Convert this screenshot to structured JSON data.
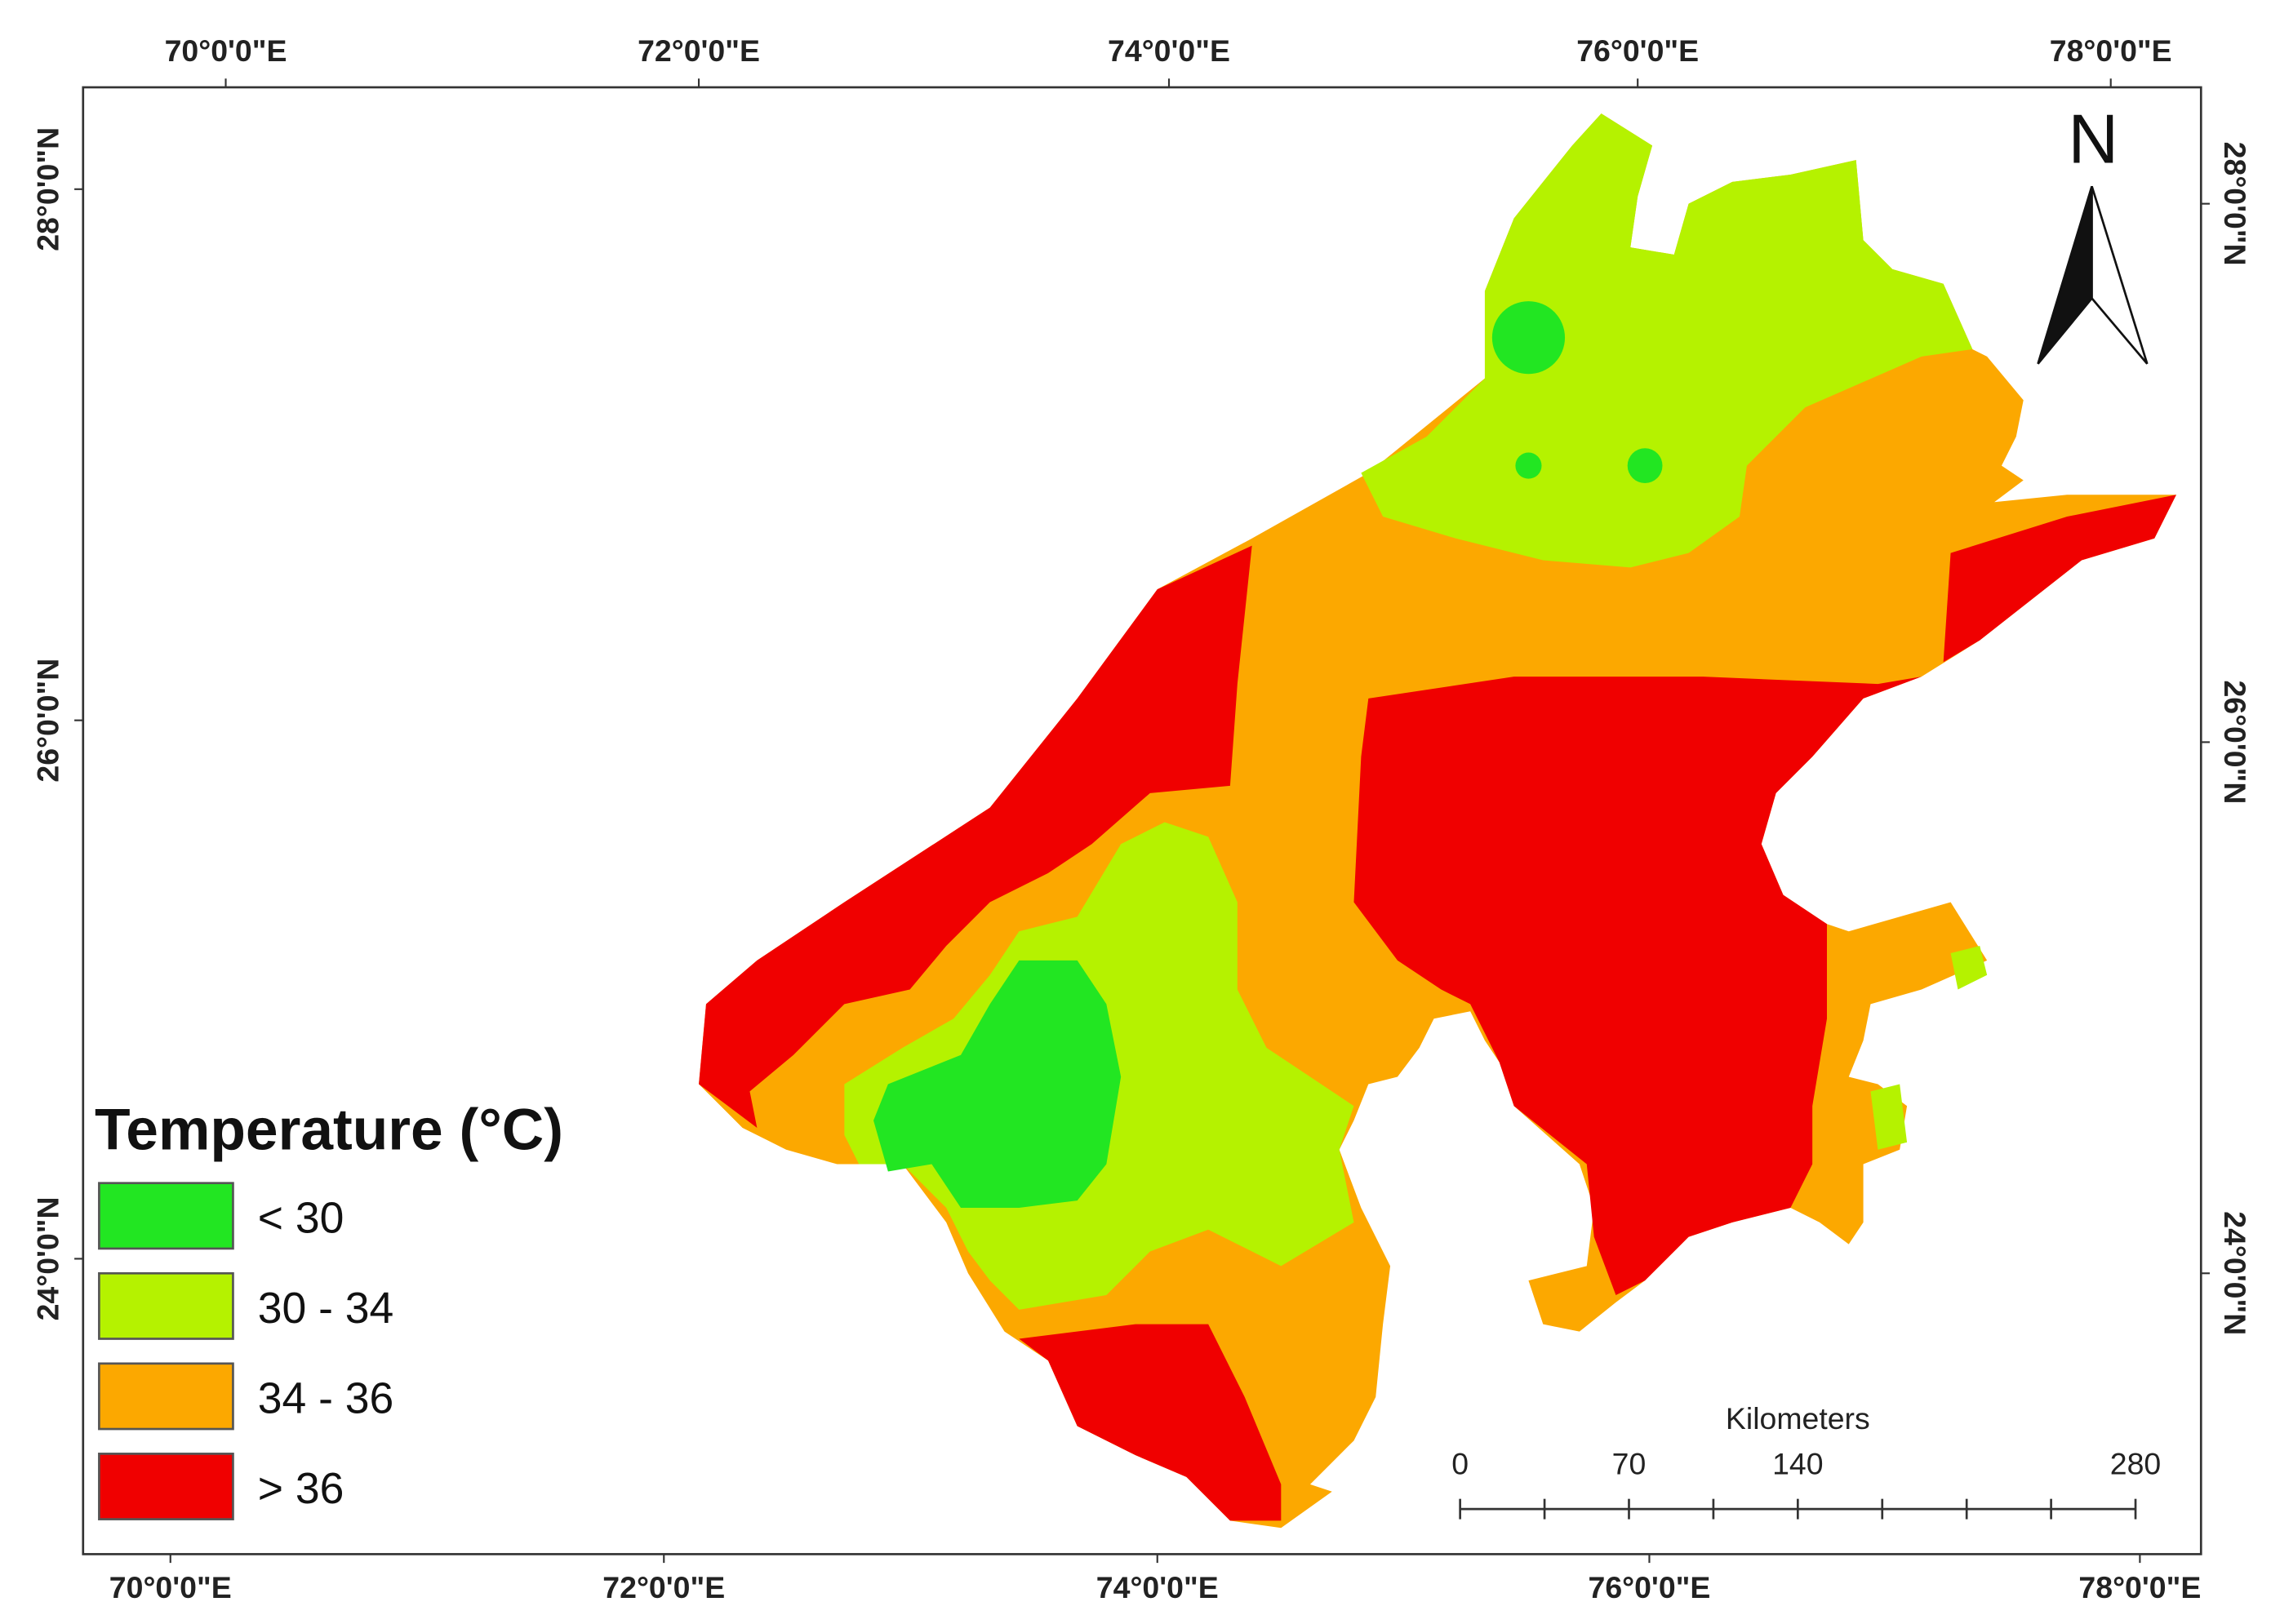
{
  "map": {
    "longitude_labels_top": [
      "70°0'0\"E",
      "72°0'0\"E",
      "74°0'0\"E",
      "76°0'0\"E",
      "78°0'0\"E"
    ],
    "longitude_labels_bottom": [
      "70°0'0\"E",
      "72°0'0\"E",
      "74°0'0\"E",
      "76°0'0\"E",
      "78°0'0\"E"
    ],
    "latitude_labels_left": [
      "28°0'0\"N",
      "26°0'0\"N",
      "24°0'0\"N"
    ],
    "latitude_labels_right": [
      "28°0'0\"N",
      "26°0'0\"N",
      "24°0'0\"N"
    ],
    "legend": {
      "title": "Temperature (°C)",
      "items": [
        {
          "label": "< 30",
          "color": "#22e622"
        },
        {
          "label": "30 - 34",
          "color": "#b5f200"
        },
        {
          "label": "34 - 36",
          "color": "#fca800"
        },
        {
          "label": "> 36",
          "color": "#f00000"
        }
      ]
    },
    "north_label": "N",
    "scale_bar": {
      "unit": "Kilometers",
      "ticks": [
        0,
        70,
        140,
        280
      ]
    }
  }
}
